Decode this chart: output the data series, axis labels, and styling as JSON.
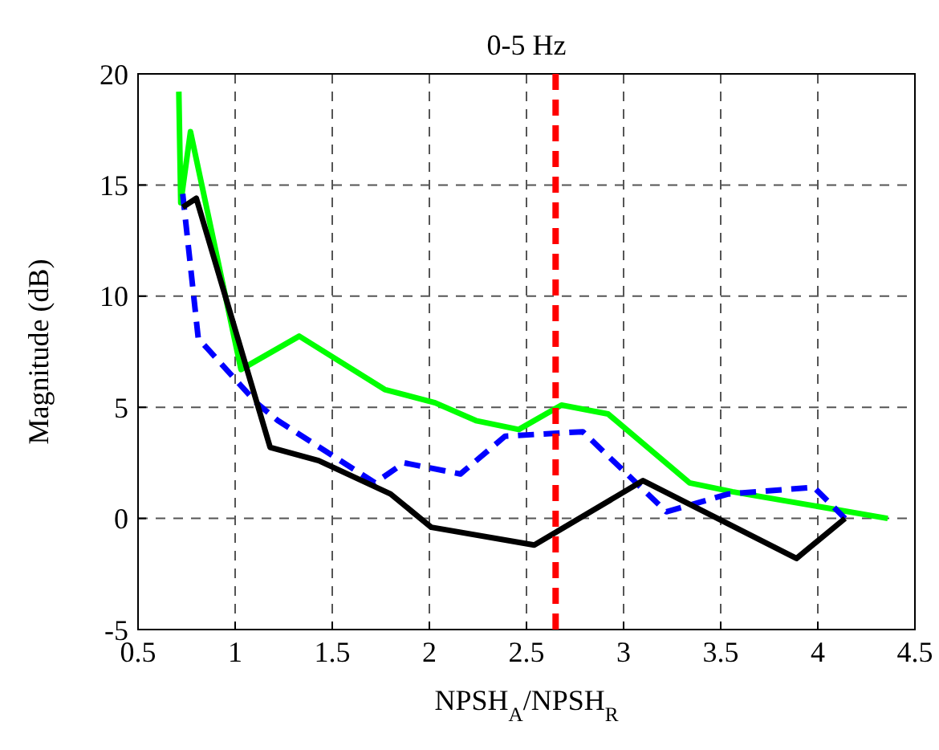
{
  "chart_data": {
    "type": "line",
    "title": "0-5 Hz",
    "xlabel": "NPSH$_{A}$/NPSH$_{R}$",
    "ylabel": "Magnitude (dB)",
    "xlim": [
      0.5,
      4.5
    ],
    "ylim": [
      -5,
      20
    ],
    "xticks": [
      0.5,
      1,
      1.5,
      2,
      2.5,
      3,
      3.5,
      4,
      4.5
    ],
    "yticks": [
      -5,
      0,
      5,
      10,
      15,
      20
    ],
    "grid": true,
    "series": [
      {
        "color": "#00ff00",
        "line_style": "solid",
        "x": [
          0.71,
          0.72,
          0.77,
          1.03,
          1.33,
          1.77,
          2.03,
          2.24,
          2.46,
          2.68,
          2.92,
          3.34,
          3.56,
          4.36
        ],
        "values": [
          19.2,
          14.2,
          17.4,
          6.7,
          8.2,
          5.8,
          5.2,
          4.4,
          4.0,
          5.1,
          4.7,
          1.6,
          1.2,
          0
        ]
      },
      {
        "color": "#0000ff",
        "line_style": "dashed",
        "x": [
          0.73,
          0.81,
          1.11,
          1.22,
          1.72,
          1.87,
          2.16,
          2.39,
          2.79,
          3.22,
          3.54,
          3.98,
          4.14
        ],
        "values": [
          14.6,
          8.1,
          5.2,
          4.4,
          1.6,
          2.5,
          2.0,
          3.7,
          3.9,
          0.3,
          1.1,
          1.4,
          0
        ]
      },
      {
        "color": "#000000",
        "line_style": "solid",
        "x": [
          0.73,
          0.8,
          1.18,
          1.43,
          1.8,
          2.01,
          2.54,
          3.1,
          3.89,
          4.14
        ],
        "values": [
          14.0,
          14.4,
          3.2,
          2.6,
          1.1,
          -0.4,
          -1.2,
          1.7,
          -1.8,
          0
        ]
      }
    ],
    "ref_lines": [
      {
        "axis": "x",
        "value": 2.65,
        "color": "#ff0000",
        "line_style": "dashed"
      }
    ]
  }
}
